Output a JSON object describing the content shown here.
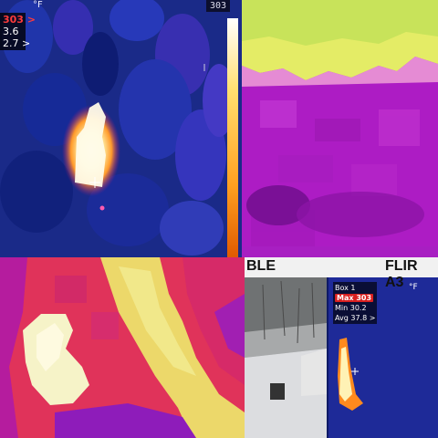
{
  "tiles": [
    {
      "id": "top-left",
      "unit": "°F",
      "scale_max": "303",
      "readouts": [
        "303 >",
        "3.6",
        "2.7 >"
      ],
      "palette": "blue-purple-ironbow",
      "colors": {
        "background": "#1b2a8a",
        "hot": "#fff6cf",
        "scale_top": "#ffffff",
        "scale_bottom": "#ff7a00"
      }
    },
    {
      "id": "top-right",
      "palette": "magenta-yellow",
      "colors": {
        "main": "#b21fc9",
        "hot": "#e8f06a"
      }
    },
    {
      "id": "bottom-left",
      "palette": "red-magenta-yellow",
      "colors": {
        "main": "#e0335a",
        "hot": "#f4f1c2",
        "cool": "#9a1fbf"
      }
    },
    {
      "id": "bottom-right",
      "banner_left": "BLE",
      "banner_right": "FLIR A3",
      "inset": {
        "box_label": "Box 1",
        "unit": "°F",
        "max_label": "Max",
        "max_value": "303",
        "min_label": "Min",
        "min_value": "30.2",
        "avg_label": "Avg",
        "avg_value": "37.8 >"
      },
      "colors": {
        "banner": "#f1f1f1",
        "visible_bg": "#8d8f90",
        "thermal_bg": "#162a8f"
      }
    }
  ]
}
